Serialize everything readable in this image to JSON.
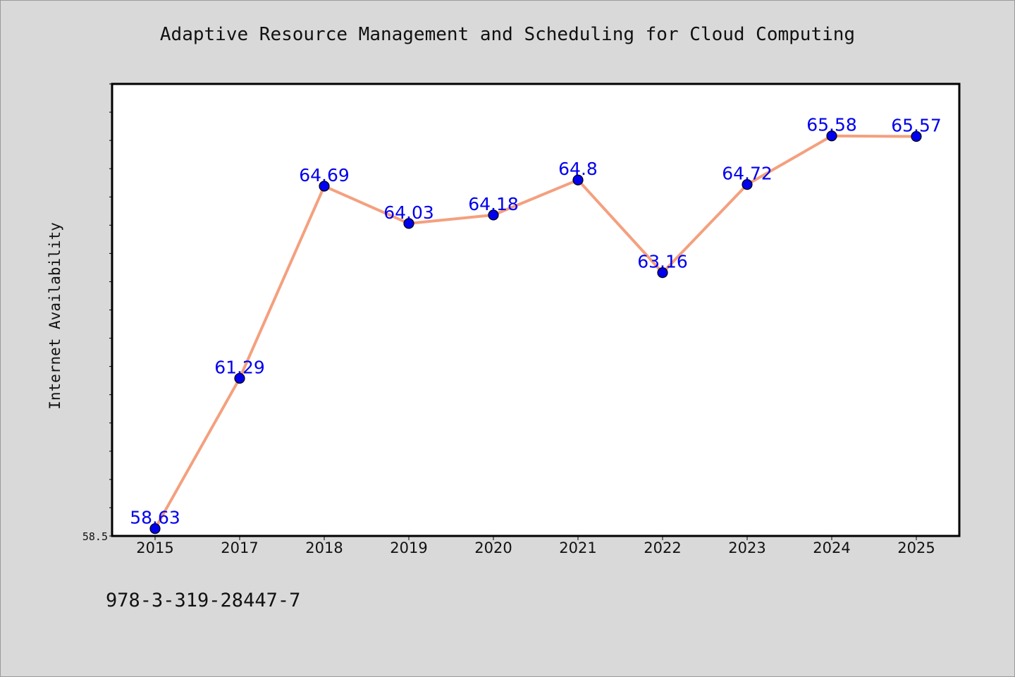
{
  "chart_data": {
    "type": "line",
    "title": "Adaptive Resource Management and Scheduling for Cloud Computing",
    "xlabel": "",
    "ylabel": "Internet Availability",
    "categories": [
      "2015",
      "2017",
      "2018",
      "2019",
      "2020",
      "2021",
      "2022",
      "2023",
      "2024",
      "2025"
    ],
    "series": [
      {
        "values": [
          58.63,
          61.29,
          64.69,
          64.03,
          64.18,
          64.8,
          63.16,
          64.72,
          65.58,
          65.57
        ]
      }
    ],
    "data_labels": [
      "58.63",
      "61.29",
      "64.69",
      "64.03",
      "64.18",
      "64.8",
      "63.16",
      "64.72",
      "65.58",
      "65.57"
    ],
    "ylim": [
      58.5,
      66.5
    ],
    "ytick_label": "58.5",
    "grid": false,
    "legend": "none",
    "colors": {
      "line": "#f4a07e",
      "marker": "#0000ee",
      "marker_edge": "#000000",
      "data_label": "#0000ee",
      "background": "#d9d9d9",
      "plot_background": "#ffffff"
    }
  },
  "footer": {
    "identifier": "978-3-319-28447-7"
  }
}
